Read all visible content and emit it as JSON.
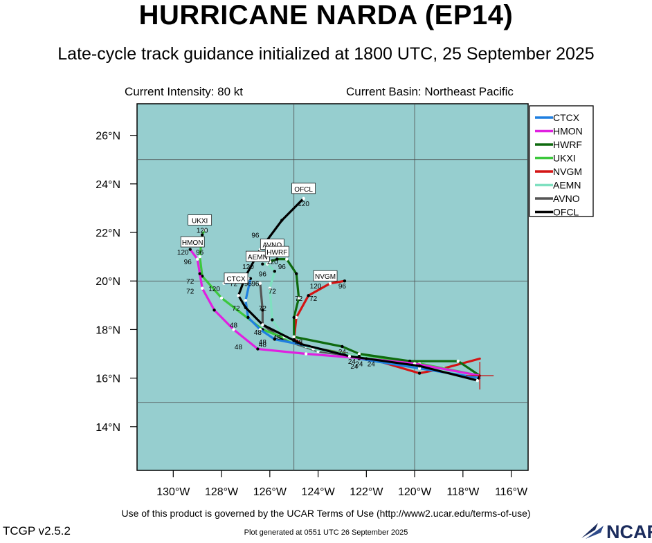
{
  "header": {
    "title": "HURRICANE NARDA (EP14)",
    "subtitle": "Late-cycle track guidance initialized at 1800 UTC, 25 September 2025",
    "current_intensity": "Current Intensity: 80 kt",
    "current_basin": "Current Basin: Northeast Pacific"
  },
  "footer": {
    "terms": "Use of this product is governed by the UCAR Terms of Use (http://www2.ucar.edu/terms-of-use)",
    "version": "TCGP v2.5.2",
    "generated": "Plot generated at 0551 UTC   26 September 2025",
    "logo_text": "NCAR"
  },
  "colors": {
    "map_background": "#96cecf",
    "gridline": "#4a4a4a",
    "storm_marker": "#cc0000"
  },
  "chart_data": {
    "type": "map-track",
    "xlim": [
      -131.5,
      -115.3
    ],
    "ylim": [
      12.2,
      27.3
    ],
    "lon_ticks": [
      {
        "value": -130,
        "label": "130°W"
      },
      {
        "value": -128,
        "label": "128°W"
      },
      {
        "value": -126,
        "label": "126°W"
      },
      {
        "value": -124,
        "label": "124°W"
      },
      {
        "value": -122,
        "label": "122°W"
      },
      {
        "value": -120,
        "label": "120°W"
      },
      {
        "value": -118,
        "label": "118°W"
      },
      {
        "value": -116,
        "label": "116°W"
      }
    ],
    "lat_ticks": [
      {
        "value": 14,
        "label": "14°N"
      },
      {
        "value": 16,
        "label": "16°N"
      },
      {
        "value": 18,
        "label": "18°N"
      },
      {
        "value": 20,
        "label": "20°N"
      },
      {
        "value": 22,
        "label": "22°N"
      },
      {
        "value": 24,
        "label": "24°N"
      },
      {
        "value": 26,
        "label": "26°N"
      }
    ],
    "grid_lon": [
      -125,
      -120
    ],
    "grid_lat": [
      15,
      20,
      25
    ],
    "legend_position": "right",
    "storm_position": {
      "lon": -117.3,
      "lat": 16.1
    },
    "series": [
      {
        "name": "AVNO",
        "color": "#555555",
        "points": [
          [
            -117.3,
            16.1
          ],
          [
            -119.8,
            16.5
          ],
          [
            -122.5,
            16.9
          ],
          [
            -124.0,
            17.1
          ],
          [
            -125.5,
            17.6
          ],
          [
            -126.3,
            18.2
          ],
          [
            -126.3,
            18.8
          ],
          [
            -126.4,
            19.9
          ]
        ],
        "hours": []
      },
      {
        "name": "NVGM",
        "color": "#d41414",
        "points": [
          [
            -117.3,
            16.8
          ],
          [
            -118.8,
            16.4
          ],
          [
            -119.8,
            16.2
          ],
          [
            -121.5,
            16.7
          ],
          [
            -122.8,
            17.0
          ],
          [
            -124.5,
            17.3
          ],
          [
            -125.0,
            17.6
          ],
          [
            -124.9,
            18.5
          ],
          [
            -124.4,
            19.4
          ],
          [
            -123.5,
            19.9
          ],
          [
            -122.9,
            20.0
          ]
        ],
        "hours": [
          {
            "h": "24",
            "lon": -122.5,
            "lat": 16.8
          },
          {
            "h": "72",
            "lon": -124.6,
            "lat": 19.4
          },
          {
            "h": "96",
            "lon": -123.1,
            "lat": 19.9
          },
          {
            "h": "120",
            "lon": -122.9,
            "lat": 20.0
          }
        ]
      },
      {
        "name": "UKXI",
        "color": "#3cc83c",
        "points": [
          [
            -117.3,
            16.1
          ],
          [
            -119.8,
            16.6
          ],
          [
            -122.3,
            16.9
          ],
          [
            -124.5,
            17.3
          ],
          [
            -126.3,
            18.0
          ],
          [
            -128.0,
            19.3
          ],
          [
            -128.8,
            20.2
          ],
          [
            -128.9,
            21.0
          ],
          [
            -128.8,
            21.9
          ],
          [
            -128.7,
            22.1
          ]
        ],
        "hours": [
          {
            "h": "48",
            "lon": -126.2,
            "lat": 18.0
          },
          {
            "h": "72",
            "lon": -128.9,
            "lat": 20.3
          },
          {
            "h": "96",
            "lon": -128.8,
            "lat": 21.2
          },
          {
            "h": "120",
            "lon": -128.7,
            "lat": 22.1
          }
        ]
      },
      {
        "name": "HWRF",
        "color": "#0f6a0f",
        "points": [
          [
            -117.3,
            16.1
          ],
          [
            -118.2,
            16.7
          ],
          [
            -120.2,
            16.7
          ],
          [
            -122.3,
            17.0
          ],
          [
            -123.0,
            17.3
          ],
          [
            -125.0,
            17.7
          ],
          [
            -125.0,
            18.5
          ],
          [
            -124.8,
            19.3
          ],
          [
            -124.9,
            20.3
          ],
          [
            -125.3,
            20.9
          ],
          [
            -125.7,
            20.9
          ],
          [
            -126.0,
            20.8
          ]
        ],
        "hours": [
          {
            "h": "24",
            "lon": -122.6,
            "lat": 16.9
          },
          {
            "h": "48",
            "lon": -125.2,
            "lat": 17.7
          },
          {
            "h": "72",
            "lon": -124.9,
            "lat": 19.3
          },
          {
            "h": "96",
            "lon": -125.6,
            "lat": 20.9
          },
          {
            "h": "120",
            "lon": -126.0,
            "lat": 20.8
          }
        ]
      },
      {
        "name": "AEMN",
        "color": "#7fe0c0",
        "points": [
          [
            -117.3,
            16.1
          ],
          [
            -120.0,
            16.5
          ],
          [
            -122.3,
            16.9
          ],
          [
            -124.2,
            17.2
          ],
          [
            -125.0,
            17.5
          ],
          [
            -125.4,
            17.7
          ],
          [
            -125.9,
            18.4
          ],
          [
            -126.0,
            19.7
          ],
          [
            -125.8,
            20.4
          ],
          [
            -126.1,
            20.7
          ],
          [
            -126.3,
            20.7
          ]
        ],
        "hours": [
          {
            "h": "48",
            "lon": -125.6,
            "lat": 17.8
          },
          {
            "h": "72",
            "lon": -126.0,
            "lat": 19.7
          },
          {
            "h": "96",
            "lon": -126.2,
            "lat": 20.4
          },
          {
            "h": "120",
            "lon": -126.3,
            "lat": 20.7
          }
        ]
      },
      {
        "name": "CTCX",
        "color": "#1f7fe0",
        "points": [
          [
            -117.3,
            16.0
          ],
          [
            -119.8,
            16.4
          ],
          [
            -122.3,
            16.8
          ],
          [
            -124.3,
            17.3
          ],
          [
            -125.8,
            17.6
          ],
          [
            -126.4,
            18.0
          ],
          [
            -126.9,
            18.5
          ],
          [
            -127.0,
            19.2
          ],
          [
            -126.8,
            20.1
          ],
          [
            -126.9,
            20.1
          ],
          [
            -127.2,
            20.0
          ],
          [
            -127.9,
            19.9
          ]
        ],
        "hours": [
          {
            "h": "24",
            "lon": -122.4,
            "lat": 16.8
          },
          {
            "h": "48",
            "lon": -126.8,
            "lat": 18.0
          },
          {
            "h": "72",
            "lon": -127.2,
            "lat": 20.0
          },
          {
            "h": "120",
            "lon": -127.9,
            "lat": 19.9
          }
        ]
      },
      {
        "name": "HMON",
        "color": "#e020e0",
        "points": [
          [
            -117.3,
            16.1
          ],
          [
            -120.0,
            16.6
          ],
          [
            -122.0,
            16.8
          ],
          [
            -124.5,
            17.0
          ],
          [
            -126.5,
            17.2
          ],
          [
            -127.5,
            18.0
          ],
          [
            -128.3,
            18.8
          ],
          [
            -128.8,
            19.7
          ],
          [
            -128.9,
            20.3
          ],
          [
            -129.0,
            20.9
          ],
          [
            -129.3,
            21.3
          ]
        ],
        "hours": [
          {
            "h": "48",
            "lon": -126.8,
            "lat": 17.5
          },
          {
            "h": "72",
            "lon": -128.9,
            "lat": 19.8
          },
          {
            "h": "96",
            "lon": -129.0,
            "lat": 20.9
          },
          {
            "h": "120",
            "lon": -129.3,
            "lat": 21.3
          }
        ]
      },
      {
        "name": "OFCL",
        "color": "#000000",
        "points": [
          [
            -117.3,
            16.1
          ],
          [
            -117.4,
            15.9
          ],
          [
            -119.8,
            16.5
          ],
          [
            -122.7,
            16.9
          ],
          [
            -124.7,
            17.4
          ],
          [
            -126.3,
            18.2
          ],
          [
            -127.0,
            18.9
          ],
          [
            -127.3,
            19.4
          ],
          [
            -127.0,
            20.2
          ],
          [
            -126.4,
            21.3
          ],
          [
            -125.5,
            22.5
          ],
          [
            -124.6,
            23.4
          ]
        ],
        "hours": [
          {
            "h": "24",
            "lon": -122.7,
            "lat": 16.8
          },
          {
            "h": "48",
            "lon": -126.3,
            "lat": 18.2
          },
          {
            "h": "72",
            "lon": -127.3,
            "lat": 19.4
          },
          {
            "h": "96",
            "lon": -126.5,
            "lat": 22.0
          },
          {
            "h": "120",
            "lon": -124.6,
            "lat": 23.4
          }
        ]
      }
    ],
    "end_labels": [
      {
        "text": "OFCL",
        "lon": -124.6,
        "lat": 23.8
      },
      {
        "text": "UKXI",
        "lon": -128.9,
        "lat": 22.5
      },
      {
        "text": "HMON",
        "lon": -129.2,
        "lat": 21.6
      },
      {
        "text": "AVNO",
        "lon": -125.9,
        "lat": 21.5
      },
      {
        "text": "AEMN",
        "lon": -126.5,
        "lat": 21.0
      },
      {
        "text": "HWRF",
        "lon": -125.7,
        "lat": 21.2
      },
      {
        "text": "CTCX",
        "lon": -127.4,
        "lat": 20.1
      },
      {
        "text": "NVGM",
        "lon": -123.7,
        "lat": 20.2
      }
    ],
    "hour_labels": [
      {
        "text": "120",
        "lon": -124.6,
        "lat": 23.2
      },
      {
        "text": "120",
        "lon": -128.8,
        "lat": 22.1
      },
      {
        "text": "96",
        "lon": -126.6,
        "lat": 21.9
      },
      {
        "text": "120",
        "lon": -129.6,
        "lat": 21.2
      },
      {
        "text": "96",
        "lon": -128.9,
        "lat": 21.2
      },
      {
        "text": "96",
        "lon": -129.4,
        "lat": 20.8
      },
      {
        "text": "120",
        "lon": -126.6,
        "lat": 21.1
      },
      {
        "text": "120",
        "lon": -125.9,
        "lat": 20.8
      },
      {
        "text": "120",
        "lon": -126.9,
        "lat": 20.6
      },
      {
        "text": "96",
        "lon": -125.5,
        "lat": 20.6
      },
      {
        "text": "96",
        "lon": -126.3,
        "lat": 20.3
      },
      {
        "text": "72",
        "lon": -127.5,
        "lat": 19.9
      },
      {
        "text": "96",
        "lon": -126.9,
        "lat": 19.9
      },
      {
        "text": "96",
        "lon": -126.6,
        "lat": 19.9
      },
      {
        "text": "120",
        "lon": -128.3,
        "lat": 19.7
      },
      {
        "text": "72",
        "lon": -129.3,
        "lat": 20.0
      },
      {
        "text": "72",
        "lon": -129.3,
        "lat": 19.6
      },
      {
        "text": "72",
        "lon": -125.9,
        "lat": 19.6
      },
      {
        "text": "120",
        "lon": -124.1,
        "lat": 19.8
      },
      {
        "text": "96",
        "lon": -123.0,
        "lat": 19.8
      },
      {
        "text": "72",
        "lon": -124.2,
        "lat": 19.3
      },
      {
        "text": "72",
        "lon": -124.8,
        "lat": 19.3
      },
      {
        "text": "72",
        "lon": -127.4,
        "lat": 18.9
      },
      {
        "text": "72",
        "lon": -126.3,
        "lat": 18.9
      },
      {
        "text": "48",
        "lon": -127.5,
        "lat": 18.2
      },
      {
        "text": "48",
        "lon": -126.5,
        "lat": 17.9
      },
      {
        "text": "48",
        "lon": -125.7,
        "lat": 17.7
      },
      {
        "text": "48",
        "lon": -126.3,
        "lat": 17.5
      },
      {
        "text": "48",
        "lon": -126.3,
        "lat": 17.4
      },
      {
        "text": "48",
        "lon": -124.8,
        "lat": 17.5
      },
      {
        "text": "48",
        "lon": -127.3,
        "lat": 17.3
      },
      {
        "text": "24",
        "lon": -123.0,
        "lat": 17.1
      },
      {
        "text": "24",
        "lon": -122.6,
        "lat": 16.7
      },
      {
        "text": "24",
        "lon": -122.3,
        "lat": 16.6
      },
      {
        "text": "24",
        "lon": -121.8,
        "lat": 16.6
      },
      {
        "text": "24",
        "lon": -122.5,
        "lat": 16.5
      }
    ]
  }
}
